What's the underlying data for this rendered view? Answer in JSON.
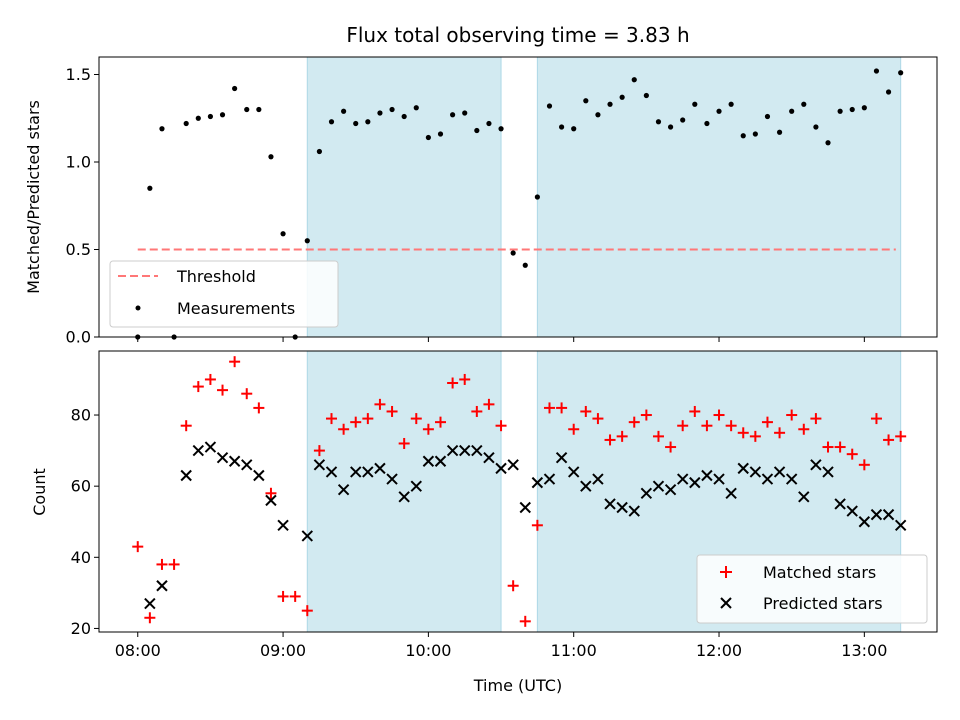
{
  "chart_data": [
    {
      "type": "scatter",
      "title": "Flux total observing time = 3.83 h",
      "xlabel": "",
      "ylabel": "Matched/Predicted stars",
      "xlim": [
        "07:44",
        "13:30"
      ],
      "ylim": [
        0.0,
        1.6
      ],
      "yticks": [
        0.0,
        0.5,
        1.0,
        1.5
      ],
      "ytick_labels": [
        "0.0",
        "0.5",
        "1.0",
        "1.5"
      ],
      "xticks": [
        "08:00",
        "09:00",
        "10:00",
        "11:00",
        "12:00",
        "13:00"
      ],
      "grid": false,
      "legend_position": "lower-left",
      "shaded_intervals": [
        [
          "09:10",
          "10:30"
        ],
        [
          "10:45",
          "13:15"
        ]
      ],
      "shade_color": "#add8e6",
      "threshold": {
        "name": "Threshold",
        "value": 0.5,
        "x_range": [
          "08:00",
          "13:13"
        ],
        "color": "#ff7777"
      },
      "series": [
        {
          "name": "Measurements",
          "color": "#000000",
          "marker": "dot",
          "points": [
            [
              "08:00",
              0.0
            ],
            [
              "08:05",
              0.85
            ],
            [
              "08:10",
              1.19
            ],
            [
              "08:15",
              0.0
            ],
            [
              "08:20",
              1.22
            ],
            [
              "08:25",
              1.25
            ],
            [
              "08:30",
              1.26
            ],
            [
              "08:35",
              1.27
            ],
            [
              "08:40",
              1.42
            ],
            [
              "08:45",
              1.3
            ],
            [
              "08:50",
              1.3
            ],
            [
              "08:55",
              1.03
            ],
            [
              "09:00",
              0.59
            ],
            [
              "09:05",
              0.0
            ],
            [
              "09:10",
              0.55
            ],
            [
              "09:15",
              1.06
            ],
            [
              "09:20",
              1.23
            ],
            [
              "09:25",
              1.29
            ],
            [
              "09:30",
              1.22
            ],
            [
              "09:35",
              1.23
            ],
            [
              "09:40",
              1.28
            ],
            [
              "09:45",
              1.3
            ],
            [
              "09:50",
              1.26
            ],
            [
              "09:55",
              1.31
            ],
            [
              "10:00",
              1.14
            ],
            [
              "10:05",
              1.16
            ],
            [
              "10:10",
              1.27
            ],
            [
              "10:15",
              1.28
            ],
            [
              "10:20",
              1.18
            ],
            [
              "10:25",
              1.22
            ],
            [
              "10:30",
              1.19
            ],
            [
              "10:35",
              0.48
            ],
            [
              "10:40",
              0.41
            ],
            [
              "10:45",
              0.8
            ],
            [
              "10:50",
              1.32
            ],
            [
              "10:55",
              1.2
            ],
            [
              "11:00",
              1.19
            ],
            [
              "11:05",
              1.35
            ],
            [
              "11:10",
              1.27
            ],
            [
              "11:15",
              1.33
            ],
            [
              "11:20",
              1.37
            ],
            [
              "11:25",
              1.47
            ],
            [
              "11:30",
              1.38
            ],
            [
              "11:35",
              1.23
            ],
            [
              "11:40",
              1.2
            ],
            [
              "11:45",
              1.24
            ],
            [
              "11:50",
              1.33
            ],
            [
              "11:55",
              1.22
            ],
            [
              "12:00",
              1.29
            ],
            [
              "12:05",
              1.33
            ],
            [
              "12:10",
              1.15
            ],
            [
              "12:15",
              1.16
            ],
            [
              "12:20",
              1.26
            ],
            [
              "12:25",
              1.17
            ],
            [
              "12:30",
              1.29
            ],
            [
              "12:35",
              1.33
            ],
            [
              "12:40",
              1.2
            ],
            [
              "12:45",
              1.11
            ],
            [
              "12:50",
              1.29
            ],
            [
              "12:55",
              1.3
            ],
            [
              "13:00",
              1.31
            ],
            [
              "13:05",
              1.52
            ],
            [
              "13:10",
              1.4
            ],
            [
              "13:15",
              1.51
            ]
          ]
        }
      ],
      "legend_entries": [
        {
          "label": "Threshold",
          "style": "dashed-line"
        },
        {
          "label": "Measurements",
          "style": "dot"
        }
      ]
    },
    {
      "type": "scatter",
      "title": "",
      "xlabel": "Time (UTC)",
      "ylabel": "Count",
      "xlim": [
        "07:44",
        "13:30"
      ],
      "ylim": [
        19,
        98
      ],
      "yticks": [
        20,
        40,
        60,
        80
      ],
      "ytick_labels": [
        "20",
        "40",
        "60",
        "80"
      ],
      "xticks": [
        "08:00",
        "09:00",
        "10:00",
        "11:00",
        "12:00",
        "13:00"
      ],
      "xtick_labels": [
        "08:00",
        "09:00",
        "10:00",
        "11:00",
        "12:00",
        "13:00"
      ],
      "grid": false,
      "legend_position": "lower-right",
      "shaded_intervals": [
        [
          "09:10",
          "10:30"
        ],
        [
          "10:45",
          "13:15"
        ]
      ],
      "shade_color": "#add8e6",
      "series": [
        {
          "name": "Matched stars",
          "color": "#ff0000",
          "marker": "plus",
          "points": [
            [
              "08:00",
              43
            ],
            [
              "08:05",
              23
            ],
            [
              "08:10",
              38
            ],
            [
              "08:15",
              38
            ],
            [
              "08:20",
              77
            ],
            [
              "08:25",
              88
            ],
            [
              "08:30",
              90
            ],
            [
              "08:35",
              87
            ],
            [
              "08:40",
              95
            ],
            [
              "08:45",
              86
            ],
            [
              "08:50",
              82
            ],
            [
              "08:55",
              58
            ],
            [
              "09:00",
              29
            ],
            [
              "09:05",
              29
            ],
            [
              "09:10",
              25
            ],
            [
              "09:15",
              70
            ],
            [
              "09:20",
              79
            ],
            [
              "09:25",
              76
            ],
            [
              "09:30",
              78
            ],
            [
              "09:35",
              79
            ],
            [
              "09:40",
              83
            ],
            [
              "09:45",
              81
            ],
            [
              "09:50",
              72
            ],
            [
              "09:55",
              79
            ],
            [
              "10:00",
              76
            ],
            [
              "10:05",
              78
            ],
            [
              "10:10",
              89
            ],
            [
              "10:15",
              90
            ],
            [
              "10:20",
              81
            ],
            [
              "10:25",
              83
            ],
            [
              "10:30",
              77
            ],
            [
              "10:35",
              32
            ],
            [
              "10:40",
              22
            ],
            [
              "10:45",
              49
            ],
            [
              "10:50",
              82
            ],
            [
              "10:55",
              82
            ],
            [
              "11:00",
              76
            ],
            [
              "11:05",
              81
            ],
            [
              "11:10",
              79
            ],
            [
              "11:15",
              73
            ],
            [
              "11:20",
              74
            ],
            [
              "11:25",
              78
            ],
            [
              "11:30",
              80
            ],
            [
              "11:35",
              74
            ],
            [
              "11:40",
              71
            ],
            [
              "11:45",
              77
            ],
            [
              "11:50",
              81
            ],
            [
              "11:55",
              77
            ],
            [
              "12:00",
              80
            ],
            [
              "12:05",
              77
            ],
            [
              "12:10",
              75
            ],
            [
              "12:15",
              74
            ],
            [
              "12:20",
              78
            ],
            [
              "12:25",
              75
            ],
            [
              "12:30",
              80
            ],
            [
              "12:35",
              76
            ],
            [
              "12:40",
              79
            ],
            [
              "12:45",
              71
            ],
            [
              "12:50",
              71
            ],
            [
              "12:55",
              69
            ],
            [
              "13:00",
              66
            ],
            [
              "13:05",
              79
            ],
            [
              "13:10",
              73
            ],
            [
              "13:15",
              74
            ]
          ]
        },
        {
          "name": "Predicted stars",
          "color": "#000000",
          "marker": "x",
          "points": [
            [
              "08:05",
              27
            ],
            [
              "08:10",
              32
            ],
            [
              "08:20",
              63
            ],
            [
              "08:25",
              70
            ],
            [
              "08:30",
              71
            ],
            [
              "08:35",
              68
            ],
            [
              "08:40",
              67
            ],
            [
              "08:45",
              66
            ],
            [
              "08:50",
              63
            ],
            [
              "08:55",
              56
            ],
            [
              "09:00",
              49
            ],
            [
              "09:10",
              46
            ],
            [
              "09:15",
              66
            ],
            [
              "09:20",
              64
            ],
            [
              "09:25",
              59
            ],
            [
              "09:30",
              64
            ],
            [
              "09:35",
              64
            ],
            [
              "09:40",
              65
            ],
            [
              "09:45",
              62
            ],
            [
              "09:50",
              57
            ],
            [
              "09:55",
              60
            ],
            [
              "10:00",
              67
            ],
            [
              "10:05",
              67
            ],
            [
              "10:10",
              70
            ],
            [
              "10:15",
              70
            ],
            [
              "10:20",
              70
            ],
            [
              "10:25",
              68
            ],
            [
              "10:30",
              65
            ],
            [
              "10:35",
              66
            ],
            [
              "10:40",
              54
            ],
            [
              "10:45",
              61
            ],
            [
              "10:50",
              62
            ],
            [
              "10:55",
              68
            ],
            [
              "11:00",
              64
            ],
            [
              "11:05",
              60
            ],
            [
              "11:10",
              62
            ],
            [
              "11:15",
              55
            ],
            [
              "11:20",
              54
            ],
            [
              "11:25",
              53
            ],
            [
              "11:30",
              58
            ],
            [
              "11:35",
              60
            ],
            [
              "11:40",
              59
            ],
            [
              "11:45",
              62
            ],
            [
              "11:50",
              61
            ],
            [
              "11:55",
              63
            ],
            [
              "12:00",
              62
            ],
            [
              "12:05",
              58
            ],
            [
              "12:10",
              65
            ],
            [
              "12:15",
              64
            ],
            [
              "12:20",
              62
            ],
            [
              "12:25",
              64
            ],
            [
              "12:30",
              62
            ],
            [
              "12:35",
              57
            ],
            [
              "12:40",
              66
            ],
            [
              "12:45",
              64
            ],
            [
              "12:50",
              55
            ],
            [
              "12:55",
              53
            ],
            [
              "13:00",
              50
            ],
            [
              "13:05",
              52
            ],
            [
              "13:10",
              52
            ],
            [
              "13:15",
              49
            ]
          ]
        }
      ],
      "legend_entries": [
        {
          "label": "Matched stars",
          "style": "plus"
        },
        {
          "label": "Predicted stars",
          "style": "x"
        }
      ]
    }
  ]
}
